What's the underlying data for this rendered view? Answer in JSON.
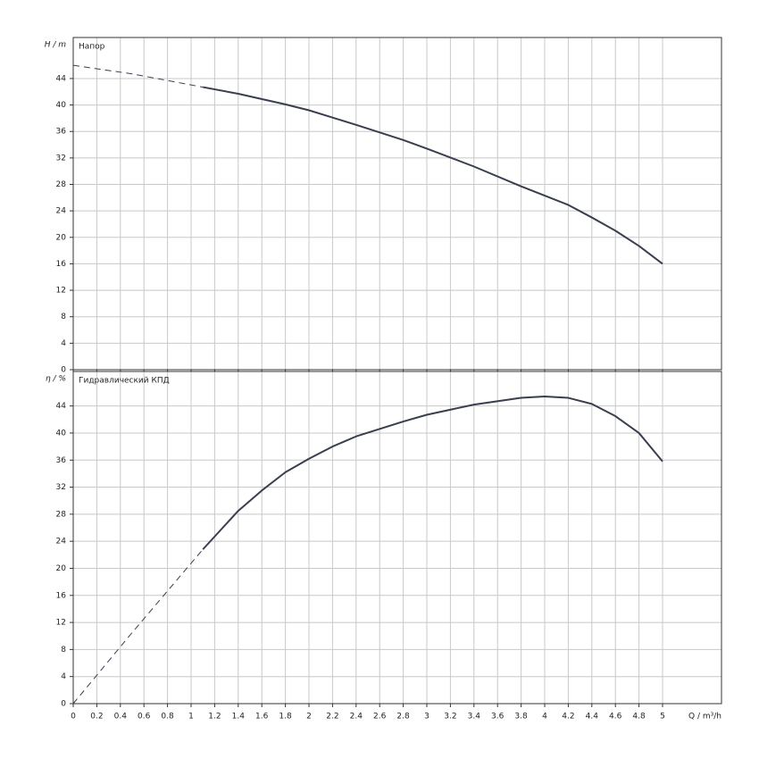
{
  "chart_data": [
    {
      "type": "line",
      "title": "Напор",
      "ylabel": "H / m",
      "xlim": [
        0,
        5.5
      ],
      "ylim": [
        0,
        50.2
      ],
      "xticks": [
        0,
        0.2,
        0.4,
        0.6,
        0.8,
        1,
        1.2,
        1.4,
        1.6,
        1.8,
        2,
        2.2,
        2.4,
        2.6,
        2.8,
        3,
        3.2,
        3.4,
        3.6,
        3.8,
        4,
        4.2,
        4.4,
        4.6,
        4.8,
        5
      ],
      "yticks": [
        0,
        4,
        8,
        12,
        16,
        20,
        24,
        28,
        32,
        36,
        40,
        44
      ],
      "grid": true,
      "show_xtick_labels": false,
      "series": [
        {
          "color": "#3a3f4f",
          "dashed": true,
          "x": [
            0,
            0.5,
            1.1
          ],
          "values": [
            46,
            44.7,
            42.7
          ]
        },
        {
          "color": "#3a3f4f",
          "dashed": false,
          "x": [
            1.1,
            1.4,
            1.8,
            2.0,
            2.4,
            2.8,
            3.0,
            3.4,
            3.8,
            4.0,
            4.2,
            4.4,
            4.6,
            4.8,
            5.0
          ],
          "values": [
            42.7,
            41.7,
            40.1,
            39.2,
            37.0,
            34.7,
            33.4,
            30.7,
            27.7,
            26.3,
            24.9,
            23.0,
            21.0,
            18.7,
            16.0
          ]
        }
      ]
    },
    {
      "type": "line",
      "title": "Гидравлический КПД",
      "ylabel": "η / %",
      "xlabel": "Q / m³/h",
      "xlim": [
        0,
        5.5
      ],
      "ylim": [
        0,
        49.1
      ],
      "xticks": [
        0,
        0.2,
        0.4,
        0.6,
        0.8,
        1,
        1.2,
        1.4,
        1.6,
        1.8,
        2,
        2.2,
        2.4,
        2.6,
        2.8,
        3,
        3.2,
        3.4,
        3.6,
        3.8,
        4,
        4.2,
        4.4,
        4.6,
        4.8,
        5
      ],
      "yticks": [
        0,
        4,
        8,
        12,
        16,
        20,
        24,
        28,
        32,
        36,
        40,
        44
      ],
      "grid": true,
      "show_xtick_labels": true,
      "series": [
        {
          "color": "#3a3f4f",
          "dashed": true,
          "x": [
            0,
            0.5,
            1.1
          ],
          "values": [
            0,
            10.5,
            22.8
          ]
        },
        {
          "color": "#3a3f4f",
          "dashed": false,
          "x": [
            1.1,
            1.4,
            1.6,
            1.8,
            2.0,
            2.2,
            2.4,
            2.8,
            3.0,
            3.4,
            3.8,
            4.0,
            4.2,
            4.4,
            4.6,
            4.8,
            5.0
          ],
          "values": [
            22.8,
            28.5,
            31.5,
            34.2,
            36.2,
            38.0,
            39.5,
            41.7,
            42.7,
            44.2,
            45.2,
            45.4,
            45.2,
            44.3,
            42.5,
            40.0,
            35.8
          ]
        }
      ]
    }
  ]
}
